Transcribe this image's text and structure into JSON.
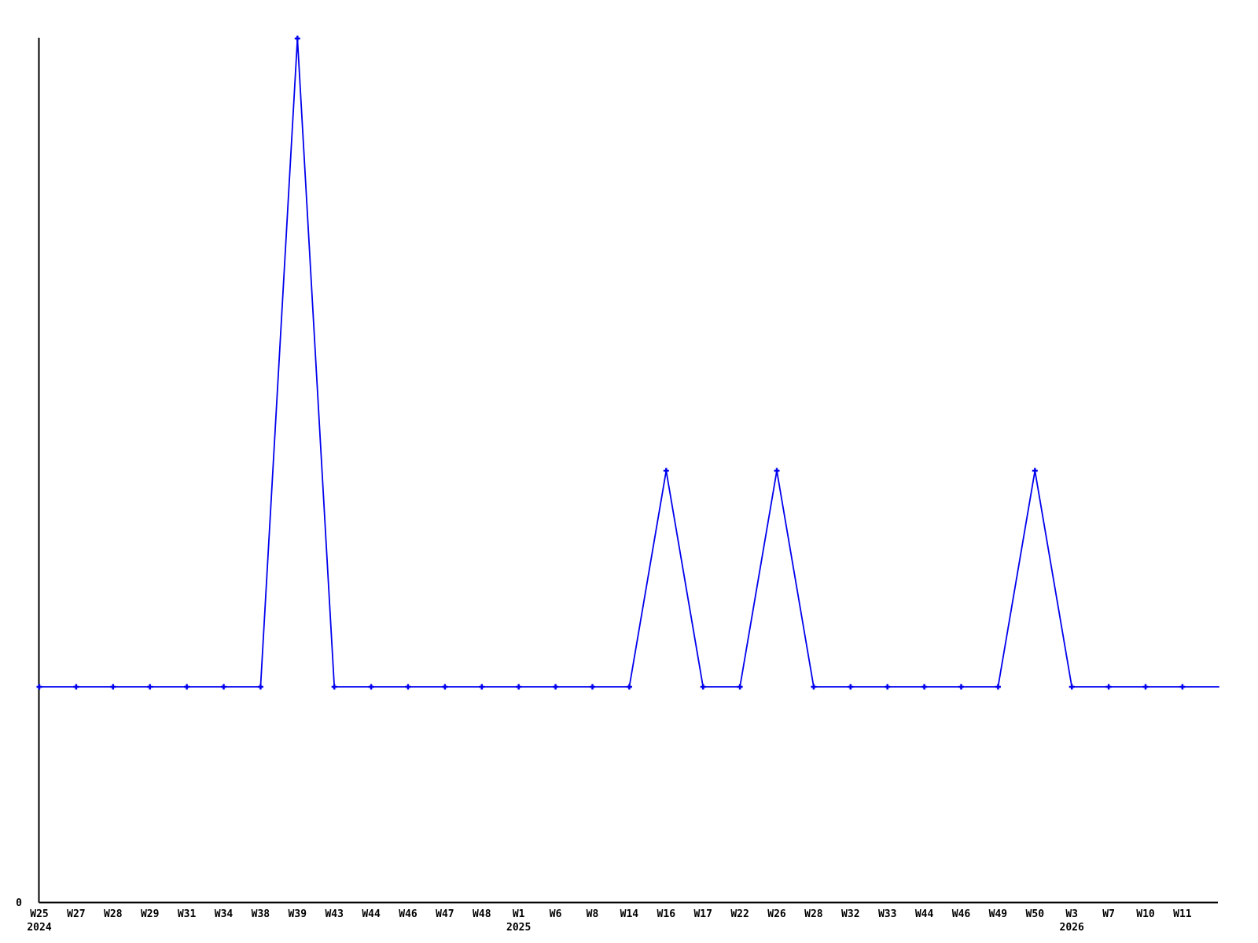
{
  "chart_data": {
    "type": "line",
    "title": "",
    "xlabel": "",
    "ylabel": "",
    "legend": null,
    "grid": false,
    "line_color": "#0000ee",
    "axis_color": "#000000",
    "text_color": "#000000",
    "background_color": "#ffffff",
    "marker": "plus",
    "y_axis": {
      "min": 0,
      "max": 4,
      "ticks": [
        {
          "label": "0",
          "value": 0
        }
      ]
    },
    "x_ticks": [
      {
        "label": "W25",
        "year": "2024",
        "value": 1
      },
      {
        "label": "W27",
        "value": 1
      },
      {
        "label": "W28",
        "value": 1
      },
      {
        "label": "W29",
        "value": 1
      },
      {
        "label": "W31",
        "value": 1
      },
      {
        "label": "W34",
        "value": 1
      },
      {
        "label": "W38",
        "value": 1
      },
      {
        "label": "W39",
        "value": 4
      },
      {
        "label": "W43",
        "value": 1
      },
      {
        "label": "W44",
        "value": 1
      },
      {
        "label": "W46",
        "value": 1
      },
      {
        "label": "W47",
        "value": 1
      },
      {
        "label": "W48",
        "value": 1
      },
      {
        "label": "W1",
        "year": "2025",
        "value": 1
      },
      {
        "label": "W6",
        "value": 1
      },
      {
        "label": "W8",
        "value": 1
      },
      {
        "label": "W14",
        "value": 1
      },
      {
        "label": "W16",
        "value": 2
      },
      {
        "label": "W17",
        "value": 1
      },
      {
        "label": "W22",
        "value": 1
      },
      {
        "label": "W26",
        "value": 2
      },
      {
        "label": "W28",
        "value": 1
      },
      {
        "label": "W32",
        "value": 1
      },
      {
        "label": "W33",
        "value": 1
      },
      {
        "label": "W44",
        "value": 1
      },
      {
        "label": "W46",
        "value": 1
      },
      {
        "label": "W49",
        "value": 1
      },
      {
        "label": "W50",
        "value": 2
      },
      {
        "label": "W3",
        "year": "2026",
        "value": 1
      },
      {
        "label": "W7",
        "value": 1
      },
      {
        "label": "W10",
        "value": 1
      },
      {
        "label": "W11",
        "value": 1
      }
    ],
    "trailing_point": {
      "label": "",
      "value": 1,
      "marker": false
    }
  }
}
